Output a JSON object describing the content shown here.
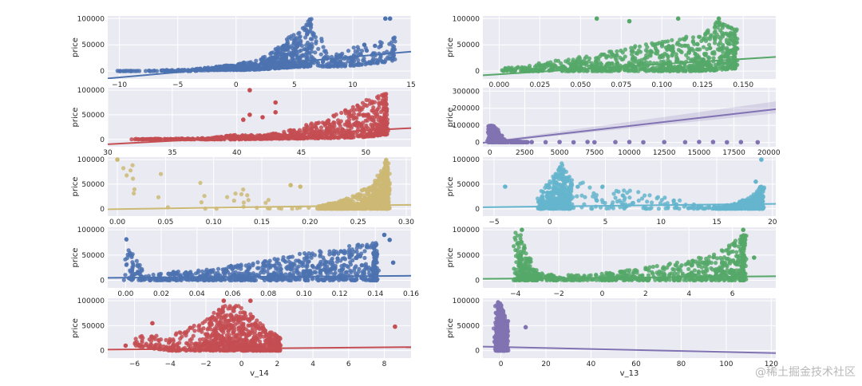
{
  "watermark": "@稀土掘金技术社区",
  "chart_data": [
    {
      "type": "scatter",
      "color": "#4c72b0",
      "ylabel": "price",
      "xlabel": "",
      "xlim": [
        -11,
        15
      ],
      "ylim": [
        -15000,
        105000
      ],
      "xticks": [
        -10,
        -5,
        0,
        5,
        10,
        15
      ],
      "xtick_labels": [
        "−10",
        "−5",
        "0",
        "5",
        "10",
        "15"
      ],
      "yticks": [
        0,
        50000,
        100000
      ],
      "ytick_labels": [
        "0",
        "50000",
        "100000"
      ],
      "fit_line": [
        [
          -11,
          -14000
        ],
        [
          15,
          37000
        ]
      ],
      "cloud": [
        [
          -10,
          0,
          300,
          0,
          0.4
        ],
        [
          -6,
          0,
          2000,
          0,
          0.5
        ],
        [
          -4,
          0,
          3000,
          0,
          0.6
        ],
        [
          -2,
          2000,
          8000,
          0,
          1
        ],
        [
          0,
          2000,
          14000,
          0,
          1.3
        ],
        [
          2,
          3000,
          22000,
          0,
          1.5
        ],
        [
          4,
          6000,
          50000,
          0,
          1.3
        ],
        [
          5,
          8000,
          75000,
          0,
          1
        ],
        [
          6,
          8000,
          95000,
          0,
          0.8
        ],
        [
          6.5,
          10000,
          100000,
          0,
          0.4
        ],
        [
          8,
          8000,
          30000,
          0,
          0.7
        ],
        [
          10,
          10000,
          45000,
          0,
          0.6
        ],
        [
          12,
          15000,
          55000,
          0,
          0.4
        ],
        [
          13.5,
          20000,
          65000,
          0,
          0.3
        ]
      ],
      "outliers": [
        [
          12.8,
          100000
        ],
        [
          13.2,
          100000
        ],
        [
          13.5,
          62000
        ],
        [
          9,
          30000
        ],
        [
          11,
          50000
        ]
      ]
    },
    {
      "type": "scatter",
      "color": "#55a868",
      "ylabel": "price",
      "xlabel": "",
      "xlim": [
        -0.01,
        0.17
      ],
      "ylim": [
        -15000,
        105000
      ],
      "xticks": [
        0,
        0.025,
        0.05,
        0.075,
        0.1,
        0.125,
        0.15
      ],
      "xtick_labels": [
        "0.000",
        "0.025",
        "0.050",
        "0.075",
        "0.100",
        "0.125",
        "0.150"
      ],
      "yticks": [
        0,
        50000,
        100000
      ],
      "ytick_labels": [
        "0",
        "50000",
        "100000"
      ],
      "fit_line": [
        [
          -0.01,
          -8000
        ],
        [
          0.17,
          27000
        ]
      ],
      "cloud": [
        [
          0.003,
          0,
          6000,
          0,
          0.6
        ],
        [
          0.02,
          0,
          12000,
          0,
          0.9
        ],
        [
          0.04,
          0,
          22000,
          0,
          1.1
        ],
        [
          0.06,
          0,
          32000,
          0,
          1.3
        ],
        [
          0.08,
          0,
          45000,
          0,
          1.5
        ],
        [
          0.1,
          0,
          58000,
          0,
          1.6
        ],
        [
          0.12,
          0,
          70000,
          0,
          1.7
        ],
        [
          0.135,
          2000,
          95000,
          0,
          1.5
        ],
        [
          0.145,
          5000,
          80000,
          0,
          0.8
        ]
      ],
      "outliers": [
        [
          0.06,
          100000
        ],
        [
          0.08,
          95000
        ],
        [
          0.11,
          100000
        ],
        [
          0.135,
          100000
        ]
      ]
    },
    {
      "type": "scatter",
      "color": "#c44e52",
      "ylabel": "price",
      "xlabel": "",
      "xlim": [
        30,
        53.5
      ],
      "ylim": [
        -15000,
        105000
      ],
      "xticks": [
        30,
        35,
        40,
        45,
        50
      ],
      "xtick_labels": [
        "30",
        "35",
        "40",
        "45",
        "50"
      ],
      "yticks": [
        0,
        50000,
        100000
      ],
      "ytick_labels": [
        "0",
        "50000",
        "100000"
      ],
      "fit_line": [
        [
          30,
          -10000
        ],
        [
          53.5,
          23000
        ]
      ],
      "cloud": [
        [
          32,
          0,
          1000,
          0,
          0.5
        ],
        [
          35,
          0,
          1500,
          0,
          0.6
        ],
        [
          38,
          0,
          3000,
          0,
          0.7
        ],
        [
          40,
          0,
          10000,
          0,
          0.8
        ],
        [
          42,
          1000,
          8000,
          0,
          0.9
        ],
        [
          44,
          1500,
          18000,
          0,
          1
        ],
        [
          46,
          2000,
          35000,
          0,
          1.2
        ],
        [
          48,
          3000,
          55000,
          0,
          1.4
        ],
        [
          50,
          5000,
          80000,
          0,
          1.6
        ],
        [
          51.5,
          10000,
          95000,
          0,
          1
        ]
      ],
      "outliers": [
        [
          40.5,
          40000
        ],
        [
          41,
          50000
        ],
        [
          42,
          45000
        ],
        [
          43,
          55000
        ],
        [
          41,
          100000
        ],
        [
          43,
          75000
        ]
      ]
    },
    {
      "type": "scatter",
      "color": "#8172b2",
      "ylabel": "price",
      "xlabel": "",
      "xlim": [
        -500,
        20500
      ],
      "ylim": [
        -25000,
        320000
      ],
      "xticks": [
        0,
        2500,
        5000,
        7500,
        10000,
        12500,
        15000,
        17500,
        20000
      ],
      "xtick_labels": [
        "0",
        "2500",
        "5000",
        "7500",
        "10000",
        "12500",
        "15000",
        "17500",
        "20000"
      ],
      "yticks": [
        0,
        100000,
        200000,
        300000
      ],
      "ytick_labels": [
        "0",
        "100000",
        "200000",
        "300000"
      ],
      "fit_line": [
        [
          -500,
          -2000
        ],
        [
          20500,
          195000
        ]
      ],
      "cloud": [
        [
          0,
          2000,
          100000,
          0,
          2
        ],
        [
          300,
          2000,
          95000,
          0,
          1.5
        ],
        [
          1000,
          1000,
          10000,
          0,
          0.4
        ],
        [
          2500,
          1000,
          3000,
          0,
          0.5
        ]
      ],
      "outliers": [
        [
          3000,
          2000
        ],
        [
          4000,
          1500
        ],
        [
          5000,
          2500
        ],
        [
          6000,
          1000
        ],
        [
          7000,
          3000
        ],
        [
          7500,
          1000
        ],
        [
          9000,
          2000
        ],
        [
          10000,
          2500
        ],
        [
          11000,
          1000
        ],
        [
          12500,
          2000
        ],
        [
          14000,
          1500
        ],
        [
          15000,
          3000
        ],
        [
          17000,
          1000
        ],
        [
          18000,
          2000
        ],
        [
          19200,
          1000
        ],
        [
          16000,
          2500
        ]
      ],
      "confidence_band": [
        [
          -500,
          -5000,
          2000
        ],
        [
          20500,
          170000,
          240000
        ]
      ]
    },
    {
      "type": "scatter",
      "color": "#ccb974",
      "ylabel": "price",
      "xlabel": "",
      "xlim": [
        -0.01,
        0.305
      ],
      "ylim": [
        -15000,
        105000
      ],
      "xticks": [
        0,
        0.05,
        0.1,
        0.15,
        0.2,
        0.25,
        0.3
      ],
      "xtick_labels": [
        "0.00",
        "0.05",
        "0.10",
        "0.15",
        "0.20",
        "0.25",
        "0.30"
      ],
      "yticks": [
        0,
        50000,
        100000
      ],
      "ytick_labels": [
        "0",
        "50000",
        "100000"
      ],
      "fit_line": [
        [
          -0.01,
          -1000
        ],
        [
          0.305,
          8000
        ]
      ],
      "cloud": [
        [
          0,
          0,
          100000,
          0,
          0.15
        ],
        [
          0.21,
          0,
          5000,
          0,
          0.8
        ],
        [
          0.23,
          0,
          15000,
          0,
          1
        ],
        [
          0.25,
          0,
          30000,
          0,
          1.3
        ],
        [
          0.27,
          0,
          60000,
          0,
          1.5
        ],
        [
          0.28,
          0,
          100000,
          0,
          1
        ]
      ],
      "outliers": [
        [
          0.18,
          48000
        ],
        [
          0.19,
          45000
        ],
        [
          0.0,
          100000
        ]
      ]
    },
    {
      "type": "scatter",
      "color": "#64b5cd",
      "ylabel": "price",
      "xlabel": "",
      "xlim": [
        -6,
        20.3
      ],
      "ylim": [
        -15000,
        105000
      ],
      "xticks": [
        -5,
        0,
        5,
        10,
        15,
        20
      ],
      "xtick_labels": [
        "−5",
        "0",
        "5",
        "10",
        "15",
        "20"
      ],
      "yticks": [
        0,
        50000,
        100000
      ],
      "ytick_labels": [
        "0",
        "50000",
        "100000"
      ],
      "fit_line": [
        [
          -6,
          3000
        ],
        [
          20.3,
          10000
        ]
      ],
      "cloud": [
        [
          -1,
          0,
          20000,
          0,
          0.6
        ],
        [
          0,
          0,
          60000,
          0,
          1.4
        ],
        [
          1,
          0,
          95000,
          0,
          1.6
        ],
        [
          2,
          0,
          60000,
          0,
          1
        ],
        [
          15,
          0,
          3000,
          0,
          0.8
        ],
        [
          16.5,
          0,
          10000,
          0,
          1
        ],
        [
          18,
          0,
          25000,
          0,
          1
        ],
        [
          19,
          0,
          45000,
          0,
          0.6
        ]
      ],
      "outliers": [
        [
          -4,
          45000
        ],
        [
          19,
          100000
        ],
        [
          18.5,
          55000
        ]
      ]
    },
    {
      "type": "scatter",
      "color": "#4c72b0",
      "ylabel": "price",
      "xlabel": "",
      "xlim": [
        -0.01,
        0.16
      ],
      "ylim": [
        -15000,
        105000
      ],
      "xticks": [
        0,
        0.02,
        0.04,
        0.06,
        0.08,
        0.1,
        0.12,
        0.14,
        0.16
      ],
      "xtick_labels": [
        "0.00",
        "0.02",
        "0.04",
        "0.06",
        "0.08",
        "0.10",
        "0.12",
        "0.14",
        "0.16"
      ],
      "yticks": [
        0,
        50000,
        100000
      ],
      "ytick_labels": [
        "0",
        "50000",
        "100000"
      ],
      "fit_line": [
        [
          -0.01,
          5000
        ],
        [
          0.16,
          9000
        ]
      ],
      "cloud": [
        [
          0,
          0,
          100000,
          0,
          0.6
        ],
        [
          0.01,
          0,
          8000,
          0,
          0.3
        ],
        [
          0.02,
          0,
          15000,
          0,
          0.8
        ],
        [
          0.04,
          0,
          20000,
          0,
          1
        ],
        [
          0.06,
          0,
          30000,
          0,
          1.2
        ],
        [
          0.08,
          0,
          40000,
          0,
          1.4
        ],
        [
          0.1,
          0,
          55000,
          0,
          1.6
        ],
        [
          0.12,
          0,
          65000,
          0,
          1.7
        ],
        [
          0.14,
          0,
          75000,
          0,
          1.3
        ]
      ],
      "outliers": [
        [
          0.145,
          90000
        ],
        [
          0.15,
          35000
        ],
        [
          0.148,
          80000
        ]
      ]
    },
    {
      "type": "scatter",
      "color": "#55a868",
      "ylabel": "price",
      "xlabel": "",
      "xlim": [
        -5.5,
        8
      ],
      "ylim": [
        -15000,
        105000
      ],
      "xticks": [
        -4,
        -2,
        0,
        2,
        4,
        6
      ],
      "xtick_labels": [
        "−4",
        "−2",
        "0",
        "2",
        "4",
        "6"
      ],
      "yticks": [
        0,
        50000,
        100000
      ],
      "ytick_labels": [
        "0",
        "50000",
        "100000"
      ],
      "fit_line": [
        [
          -5.5,
          3000
        ],
        [
          8,
          8000
        ]
      ],
      "cloud": [
        [
          -4,
          0,
          100000,
          0,
          1.4
        ],
        [
          -3.5,
          0,
          60000,
          0,
          1
        ],
        [
          -3,
          0,
          15000,
          0,
          0.6
        ],
        [
          -2,
          0,
          10000,
          0,
          0.6
        ],
        [
          0,
          0,
          15000,
          0,
          0.9
        ],
        [
          2,
          0,
          25000,
          0,
          1.1
        ],
        [
          4,
          0,
          40000,
          0,
          1.3
        ],
        [
          5.5,
          0,
          60000,
          0,
          1.5
        ],
        [
          6.5,
          0,
          90000,
          0,
          1.2
        ]
      ],
      "outliers": [
        [
          -3.7,
          100000
        ],
        [
          6.5,
          100000
        ],
        [
          7,
          45000
        ]
      ]
    },
    {
      "type": "scatter",
      "color": "#c44e52",
      "ylabel": "price",
      "xlabel": "v_14",
      "xlim": [
        -7.5,
        9.5
      ],
      "ylim": [
        -15000,
        105000
      ],
      "xticks": [
        -6,
        -4,
        -2,
        0,
        2,
        4,
        6,
        8
      ],
      "xtick_labels": [
        "−6",
        "−4",
        "−2",
        "0",
        "2",
        "4",
        "6",
        "8"
      ],
      "yticks": [
        0,
        50000,
        100000
      ],
      "ytick_labels": [
        "0",
        "50000",
        "100000"
      ],
      "fit_line": [
        [
          -7.5,
          2000
        ],
        [
          9.5,
          7000
        ]
      ],
      "cloud": [
        [
          -6,
          10000,
          30000,
          0,
          0.5
        ],
        [
          -4,
          0,
          30000,
          0,
          1.2
        ],
        [
          -2,
          0,
          60000,
          0,
          1.5
        ],
        [
          -1,
          0,
          95000,
          0,
          1.6
        ],
        [
          0,
          0,
          90000,
          0,
          1.6
        ],
        [
          1,
          0,
          60000,
          0,
          1.3
        ],
        [
          2,
          0,
          30000,
          0,
          0.9
        ]
      ],
      "outliers": [
        [
          -6.5,
          10000
        ],
        [
          -5,
          55000
        ],
        [
          8.6,
          48000
        ],
        [
          -1,
          100000
        ],
        [
          0.5,
          100000
        ]
      ]
    },
    {
      "type": "scatter",
      "color": "#8172b2",
      "ylabel": "price",
      "xlabel": "v_13",
      "xlim": [
        -8,
        122
      ],
      "ylim": [
        -15000,
        105000
      ],
      "xticks": [
        0,
        20,
        40,
        60,
        80,
        100,
        120
      ],
      "xtick_labels": [
        "0",
        "20",
        "40",
        "60",
        "80",
        "100",
        "120"
      ],
      "yticks": [
        0,
        50000,
        100000
      ],
      "ytick_labels": [
        "0",
        "50000",
        "100000"
      ],
      "fit_line": [
        [
          -8,
          8000
        ],
        [
          122,
          -5000
        ]
      ],
      "cloud": [
        [
          -2,
          0,
          100000,
          0,
          1.4
        ],
        [
          0,
          0,
          95000,
          0,
          1.4
        ],
        [
          2,
          0,
          60000,
          0,
          0.8
        ]
      ],
      "outliers": [
        [
          11,
          47000
        ]
      ]
    }
  ]
}
